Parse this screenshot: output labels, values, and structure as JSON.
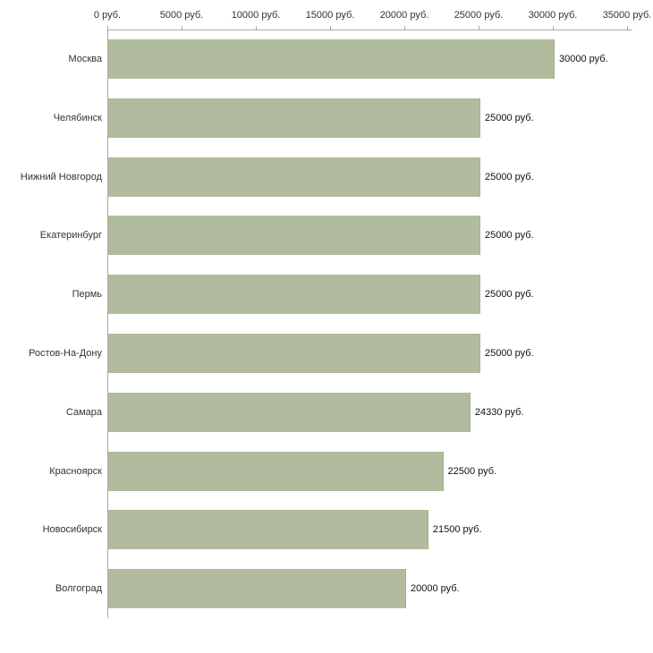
{
  "chart_data": {
    "type": "bar",
    "orientation": "horizontal",
    "title": "",
    "xlabel": "",
    "ylabel": "",
    "categories": [
      "Москва",
      "Челябинск",
      "Нижний Новгород",
      "Екатеринбург",
      "Пермь",
      "Ростов-На-Дону",
      "Самара",
      "Красноярск",
      "Новосибирск",
      "Волгоград"
    ],
    "values": [
      30000,
      25000,
      25000,
      25000,
      25000,
      25000,
      24330,
      22500,
      21500,
      20000
    ],
    "value_labels": [
      "30000 руб.",
      "25000 руб.",
      "25000 руб.",
      "25000 руб.",
      "25000 руб.",
      "25000 руб.",
      "24330 руб.",
      "22500 руб.",
      "21500 руб.",
      "20000 руб."
    ],
    "x_ticks": [
      0,
      5000,
      10000,
      15000,
      20000,
      25000,
      30000,
      35000
    ],
    "x_tick_labels": [
      "0 руб.",
      "5000 руб.",
      "10000 руб.",
      "15000 руб.",
      "20000 руб.",
      "25000 руб.",
      "30000 руб.",
      "35000 руб."
    ],
    "xlim": [
      0,
      35000
    ],
    "grid": false,
    "legend": false,
    "tick_position": "top",
    "colors": {
      "bar": "#b1bb9d",
      "bar_border": "#a6b091",
      "axis": "#aaaaaa",
      "tick_text": "#333333",
      "category_text": "#333333",
      "value_text": "#111111",
      "background": "#ffffff"
    }
  }
}
